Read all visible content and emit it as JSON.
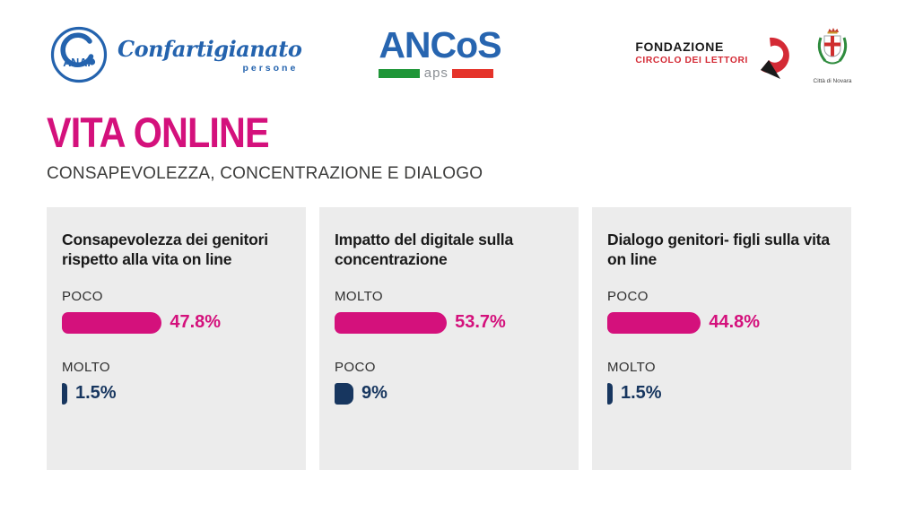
{
  "header": {
    "anap_acronym": "ANAP",
    "confartigianato": "Confartigianato",
    "confartigianato_sub": "persone",
    "ancos": "ANCoS",
    "ancos_sub": "aps",
    "fondazione_line1": "FONDAZIONE",
    "fondazione_line2": "CIRCOLO DEI LETTORI",
    "novara_caption": "Città di Novara"
  },
  "title": "VITA ONLINE",
  "subtitle": "CONSAPEVOLEZZA, CONCENTRAZIONE E DIALOGO",
  "colors": {
    "accent_pink": "#d4117c",
    "accent_navy": "#17365f",
    "panel_bg": "#ececec",
    "title_text": "#1a1a1a",
    "subtitle_text": "#3c3c3b",
    "confartigianato_blue": "#2463ae",
    "ancos_blue": "#2765b0",
    "flag_green": "#1f9638",
    "flag_red": "#e5332a",
    "fondazione_red": "#d42a35"
  },
  "chart_data": [
    {
      "type": "bar",
      "orientation": "horizontal",
      "title": "Consapevolezza dei genitori rispetto alla vita on line",
      "categories": [
        "POCO",
        "MOLTO"
      ],
      "values": [
        47.8,
        1.5
      ],
      "value_labels": [
        "47.8%",
        "1.5%"
      ],
      "bar_colors": [
        "#d4117c",
        "#17365f"
      ],
      "xlim": [
        0,
        100
      ],
      "grid": false,
      "legend": false
    },
    {
      "type": "bar",
      "orientation": "horizontal",
      "title": "Impatto del digitale sulla concentrazione",
      "categories": [
        "MOLTO",
        "POCO"
      ],
      "values": [
        53.7,
        9
      ],
      "value_labels": [
        "53.7%",
        "9%"
      ],
      "bar_colors": [
        "#d4117c",
        "#17365f"
      ],
      "xlim": [
        0,
        100
      ],
      "grid": false,
      "legend": false
    },
    {
      "type": "bar",
      "orientation": "horizontal",
      "title": "Dialogo genitori- figli sulla vita on line",
      "categories": [
        "POCO",
        "MOLTO"
      ],
      "values": [
        44.8,
        1.5
      ],
      "value_labels": [
        "44.8%",
        "1.5%"
      ],
      "bar_colors": [
        "#d4117c",
        "#17365f"
      ],
      "xlim": [
        0,
        100
      ],
      "grid": false,
      "legend": false
    }
  ]
}
